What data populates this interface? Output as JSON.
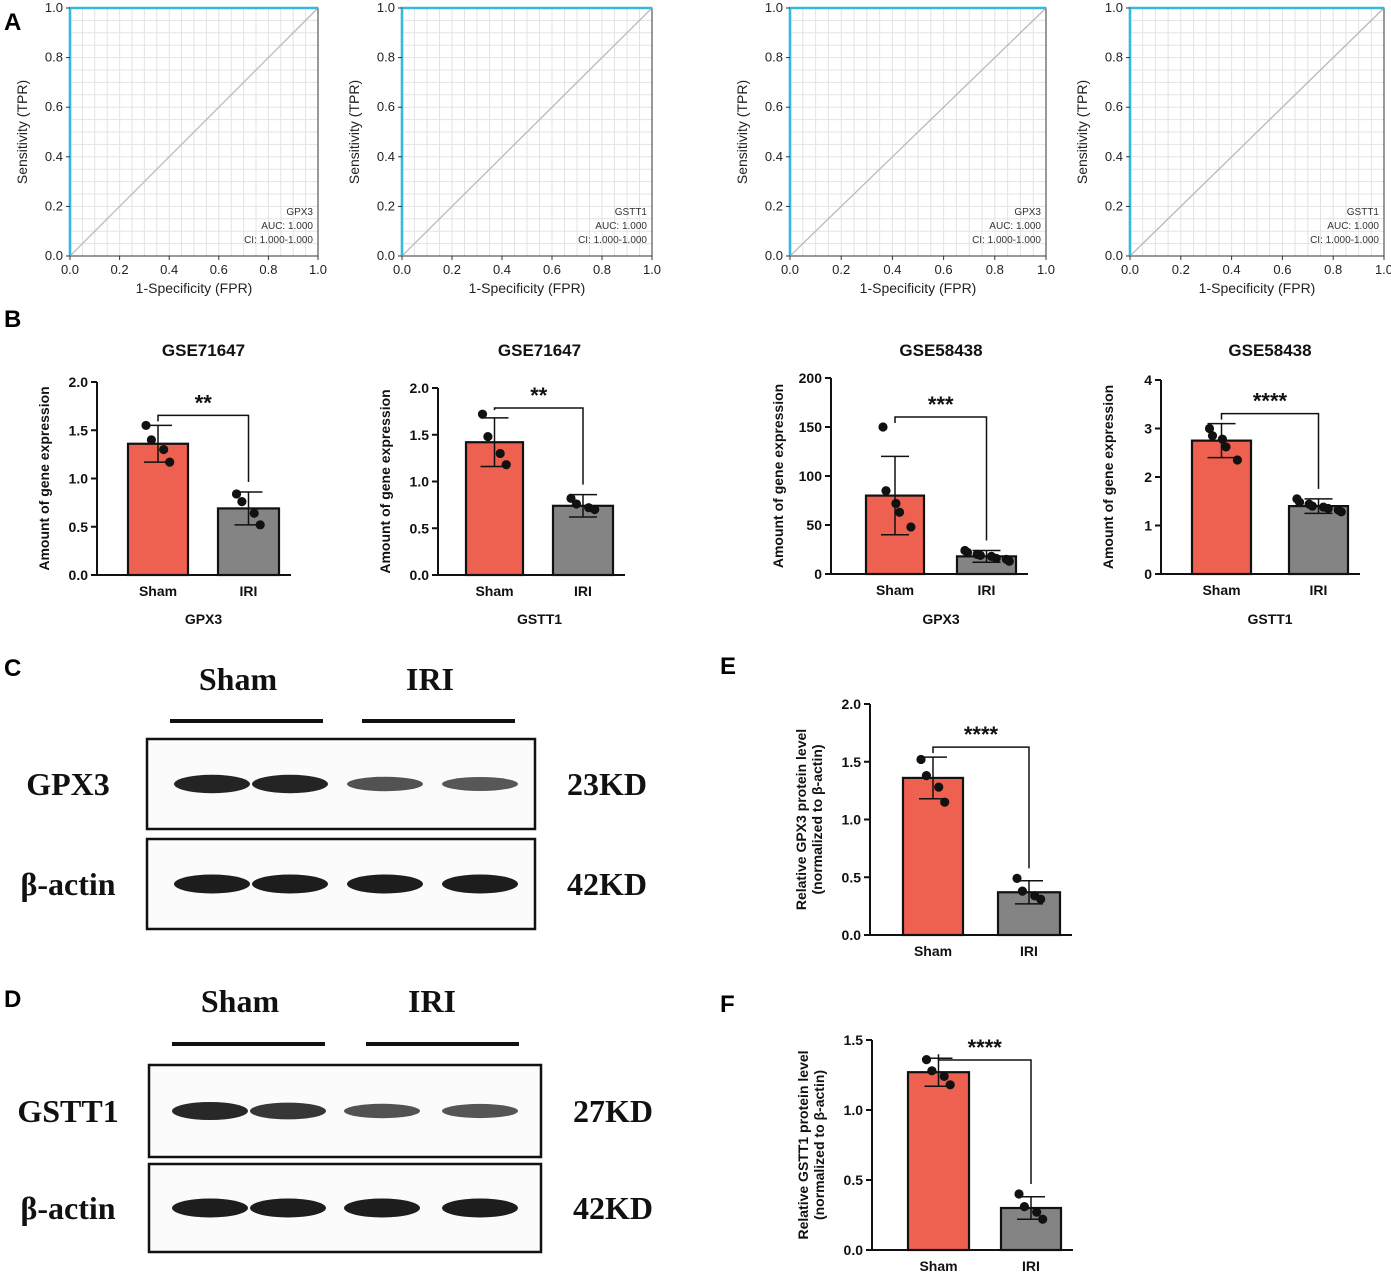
{
  "figure": {
    "panel_labels": {
      "A": "A",
      "B": "B",
      "C": "C",
      "D": "D",
      "E": "E",
      "F": "F"
    },
    "colors": {
      "roc_line": "#35b9de",
      "diagonal": "#b9b9b9",
      "grid": "#e3e3e3",
      "sham": "#ee6150",
      "iri": "#848484"
    }
  },
  "chart_data": [
    {
      "id": "roc1",
      "type": "line",
      "xlabel": "1-Specificity (FPR)",
      "ylabel": "Sensitivity (TPR)",
      "xlim": [
        0,
        1
      ],
      "ylim": [
        0,
        1
      ],
      "ticks": [
        "0.0",
        "0.2",
        "0.4",
        "0.6",
        "0.8",
        "1.0"
      ],
      "grid": true,
      "series": [
        {
          "name": "ROC",
          "x": [
            0,
            0,
            1
          ],
          "y": [
            0,
            1,
            1
          ]
        },
        {
          "name": "reference",
          "x": [
            0,
            1
          ],
          "y": [
            0,
            1
          ]
        }
      ],
      "annotations": [
        "GPX3",
        "AUC: 1.000",
        "CI: 1.000-1.000"
      ]
    },
    {
      "id": "roc2",
      "type": "line",
      "xlabel": "1-Specificity (FPR)",
      "ylabel": "Sensitivity (TPR)",
      "xlim": [
        0,
        1
      ],
      "ylim": [
        0,
        1
      ],
      "ticks": [
        "0.0",
        "0.2",
        "0.4",
        "0.6",
        "0.8",
        "1.0"
      ],
      "grid": true,
      "series": [
        {
          "name": "ROC",
          "x": [
            0,
            0,
            1
          ],
          "y": [
            0,
            1,
            1
          ]
        },
        {
          "name": "reference",
          "x": [
            0,
            1
          ],
          "y": [
            0,
            1
          ]
        }
      ],
      "annotations": [
        "GSTT1",
        "AUC: 1.000",
        "CI: 1.000-1.000"
      ]
    },
    {
      "id": "roc3",
      "type": "line",
      "xlabel": "1-Specificity (FPR)",
      "ylabel": "Sensitivity (TPR)",
      "xlim": [
        0,
        1
      ],
      "ylim": [
        0,
        1
      ],
      "ticks": [
        "0.0",
        "0.2",
        "0.4",
        "0.6",
        "0.8",
        "1.0"
      ],
      "grid": true,
      "series": [
        {
          "name": "ROC",
          "x": [
            0,
            0,
            1
          ],
          "y": [
            0,
            1,
            1
          ]
        },
        {
          "name": "reference",
          "x": [
            0,
            1
          ],
          "y": [
            0,
            1
          ]
        }
      ],
      "annotations": [
        "GPX3",
        "AUC: 1.000",
        "CI: 1.000-1.000"
      ]
    },
    {
      "id": "roc4",
      "type": "line",
      "xlabel": "1-Specificity (FPR)",
      "ylabel": "Sensitivity (TPR)",
      "xlim": [
        0,
        1
      ],
      "ylim": [
        0,
        1
      ],
      "ticks": [
        "0.0",
        "0.2",
        "0.4",
        "0.6",
        "0.8",
        "1.0"
      ],
      "grid": true,
      "series": [
        {
          "name": "ROC",
          "x": [
            0,
            0,
            1
          ],
          "y": [
            0,
            1,
            1
          ]
        },
        {
          "name": "reference",
          "x": [
            0,
            1
          ],
          "y": [
            0,
            1
          ]
        }
      ],
      "annotations": [
        "GSTT1",
        "AUC: 1.000",
        "CI: 1.000-1.000"
      ]
    },
    {
      "id": "bar1",
      "type": "bar",
      "title": "GSE71647",
      "xlabel": "GPX3",
      "ylabel": "Amount of gene expression",
      "categories": [
        "Sham",
        "IRI"
      ],
      "values": [
        1.36,
        0.69
      ],
      "errors": [
        0.19,
        0.17
      ],
      "points": [
        [
          1.55,
          1.4,
          1.3,
          1.17
        ],
        [
          0.84,
          0.76,
          0.64,
          0.52
        ]
      ],
      "ylim": [
        0,
        2.0
      ],
      "yticks": [
        "0.0",
        "0.5",
        "1.0",
        "1.5",
        "2.0"
      ],
      "significance": "**"
    },
    {
      "id": "bar2",
      "type": "bar",
      "title": "GSE71647",
      "xlabel": "GSTT1",
      "ylabel": "Amount of gene expression",
      "categories": [
        "Sham",
        "IRI"
      ],
      "values": [
        1.42,
        0.74
      ],
      "errors": [
        0.26,
        0.12
      ],
      "points": [
        [
          1.72,
          1.48,
          1.3,
          1.18
        ],
        [
          0.82,
          0.76,
          0.72,
          0.7
        ]
      ],
      "ylim": [
        0,
        2.0
      ],
      "yticks": [
        "0.0",
        "0.5",
        "1.0",
        "1.5",
        "2.0"
      ],
      "significance": "**"
    },
    {
      "id": "bar3",
      "type": "bar",
      "title": "GSE58438",
      "xlabel": "GPX3",
      "ylabel": "Amount of gene expression",
      "categories": [
        "Sham",
        "IRI"
      ],
      "values": [
        80,
        18
      ],
      "errors": [
        40,
        6
      ],
      "points": [
        [
          150,
          85,
          72,
          63,
          48
        ],
        [
          24,
          22,
          20,
          19,
          18,
          16,
          15,
          13
        ]
      ],
      "ylim": [
        0,
        200
      ],
      "yticks": [
        "0",
        "50",
        "100",
        "150",
        "200"
      ],
      "significance": "***"
    },
    {
      "id": "bar4",
      "type": "bar",
      "title": "GSE58438",
      "xlabel": "GSTT1",
      "ylabel": "Amount of gene expression",
      "categories": [
        "Sham",
        "IRI"
      ],
      "values": [
        2.75,
        1.4
      ],
      "errors": [
        0.35,
        0.15
      ],
      "points": [
        [
          3.0,
          2.85,
          2.78,
          2.62,
          2.35
        ],
        [
          1.55,
          1.48,
          1.44,
          1.4,
          1.38,
          1.35,
          1.32,
          1.28
        ]
      ],
      "ylim": [
        0,
        4
      ],
      "yticks": [
        "0",
        "1",
        "2",
        "3",
        "4"
      ],
      "significance": "****"
    },
    {
      "id": "barE",
      "type": "bar",
      "title": "",
      "xlabel": "",
      "ylabel": "Relative GPX3 protein level",
      "ylabel2": "(normalized to β-actin)",
      "categories": [
        "Sham",
        "IRI"
      ],
      "values": [
        1.36,
        0.37
      ],
      "errors": [
        0.18,
        0.1
      ],
      "points": [
        [
          1.52,
          1.38,
          1.28,
          1.15
        ],
        [
          0.49,
          0.38,
          0.34,
          0.31
        ]
      ],
      "ylim": [
        0,
        2.0
      ],
      "yticks": [
        "0.0",
        "0.5",
        "1.0",
        "1.5",
        "2.0"
      ],
      "significance": "****"
    },
    {
      "id": "barF",
      "type": "bar",
      "title": "",
      "xlabel": "",
      "ylabel": "Relative GSTT1 protein level",
      "ylabel2": "(normalized to β-actin)",
      "categories": [
        "Sham",
        "IRI"
      ],
      "values": [
        1.27,
        0.3
      ],
      "errors": [
        0.1,
        0.08
      ],
      "points": [
        [
          1.36,
          1.28,
          1.24,
          1.18
        ],
        [
          0.4,
          0.31,
          0.27,
          0.22
        ]
      ],
      "ylim": [
        0,
        1.5
      ],
      "yticks": [
        "0.0",
        "0.5",
        "1.0",
        "1.5"
      ],
      "significance": "****"
    }
  ],
  "blots": [
    {
      "id": "blotC",
      "groups": [
        "Sham",
        "IRI"
      ],
      "rows": [
        {
          "protein": "GPX3",
          "size": "23KD",
          "band_intensity": [
            0.95,
            0.95,
            0.62,
            0.58
          ]
        },
        {
          "protein": "β-actin",
          "size": "42KD",
          "band_intensity": [
            1.0,
            1.0,
            1.0,
            1.0
          ]
        }
      ]
    },
    {
      "id": "blotD",
      "groups": [
        "Sham",
        "IRI"
      ],
      "rows": [
        {
          "protein": "GSTT1",
          "size": "27KD",
          "band_intensity": [
            0.92,
            0.82,
            0.62,
            0.6
          ]
        },
        {
          "protein": "β-actin",
          "size": "42KD",
          "band_intensity": [
            1.0,
            1.0,
            1.0,
            1.0
          ]
        }
      ]
    }
  ]
}
